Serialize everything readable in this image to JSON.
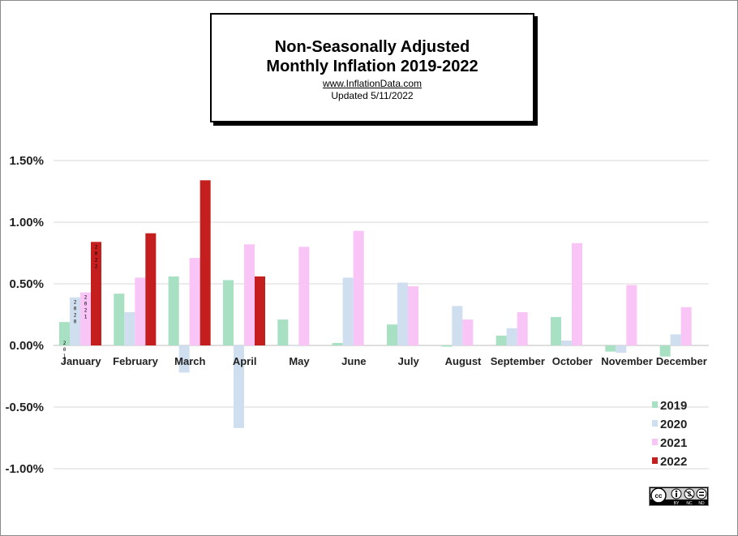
{
  "title_line1": "Non-Seasonally  Adjusted",
  "title_line2": "Monthly  Inflation  2019-2022",
  "url": "www.InflationData.com",
  "updated": "Updated    5/11/2022",
  "license_badge": "cc by nc nd",
  "chart_data": {
    "type": "bar",
    "title": "Non-Seasonally Adjusted Monthly Inflation 2019-2022",
    "xlabel": "",
    "ylabel": "",
    "ylim": [
      -1.0,
      1.5
    ],
    "ytick_values": [
      -1.0,
      -0.5,
      0.0,
      0.5,
      1.0,
      1.5
    ],
    "ytick_labels": [
      "-1.00%",
      "-0.50%",
      "0.00%",
      "0.50%",
      "1.00%",
      "1.50%"
    ],
    "grid": true,
    "legend_position": "bottom-right",
    "categories": [
      "January",
      "February",
      "March",
      "April",
      "May",
      "June",
      "July",
      "August",
      "September",
      "October",
      "November",
      "December"
    ],
    "series": [
      {
        "name": "2019",
        "color": "#a7e0c2",
        "values": [
          0.19,
          0.42,
          0.56,
          0.53,
          0.21,
          0.02,
          0.17,
          -0.01,
          0.08,
          0.23,
          -0.05,
          -0.09
        ]
      },
      {
        "name": "2020",
        "color": "#cfdff0",
        "values": [
          0.39,
          0.27,
          -0.22,
          -0.67,
          0.0,
          0.55,
          0.51,
          0.32,
          0.14,
          0.04,
          -0.06,
          0.09
        ]
      },
      {
        "name": "2021",
        "color": "#f9c4f6",
        "values": [
          0.43,
          0.55,
          0.71,
          0.82,
          0.8,
          0.93,
          0.48,
          0.21,
          0.27,
          0.83,
          0.49,
          0.31
        ]
      },
      {
        "name": "2022",
        "color": "#c41e1e",
        "values": [
          0.84,
          0.91,
          1.34,
          0.56,
          null,
          null,
          null,
          null,
          null,
          null,
          null,
          null
        ]
      }
    ],
    "january_bar_labels": [
      "2019",
      "2020",
      "2021",
      "2022"
    ]
  }
}
